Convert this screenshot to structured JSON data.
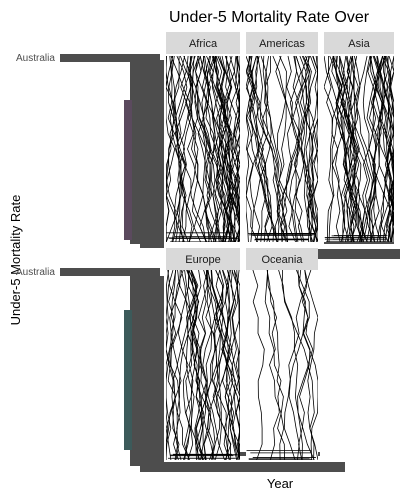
{
  "chart_data": {
    "type": "line",
    "title": "Under-5 Mortality Rate Over",
    "xlabel": "Year",
    "ylabel": "Under-5 Mortality Rate",
    "facet_labels": [
      "Africa",
      "Americas",
      "Asia",
      "Europe",
      "Oceania"
    ],
    "y_tick_label_visible": "Australia",
    "legend": "none",
    "grid": false,
    "panel_background": "#ffffff",
    "strip_background": "#d9d9d9",
    "line_color": "#000000",
    "facets": [
      {
        "name": "Africa",
        "approx_series_count": 54
      },
      {
        "name": "Americas",
        "approx_series_count": 35
      },
      {
        "name": "Asia",
        "approx_series_count": 48
      },
      {
        "name": "Europe",
        "approx_series_count": 44
      },
      {
        "name": "Oceania",
        "approx_series_count": 12
      }
    ]
  }
}
